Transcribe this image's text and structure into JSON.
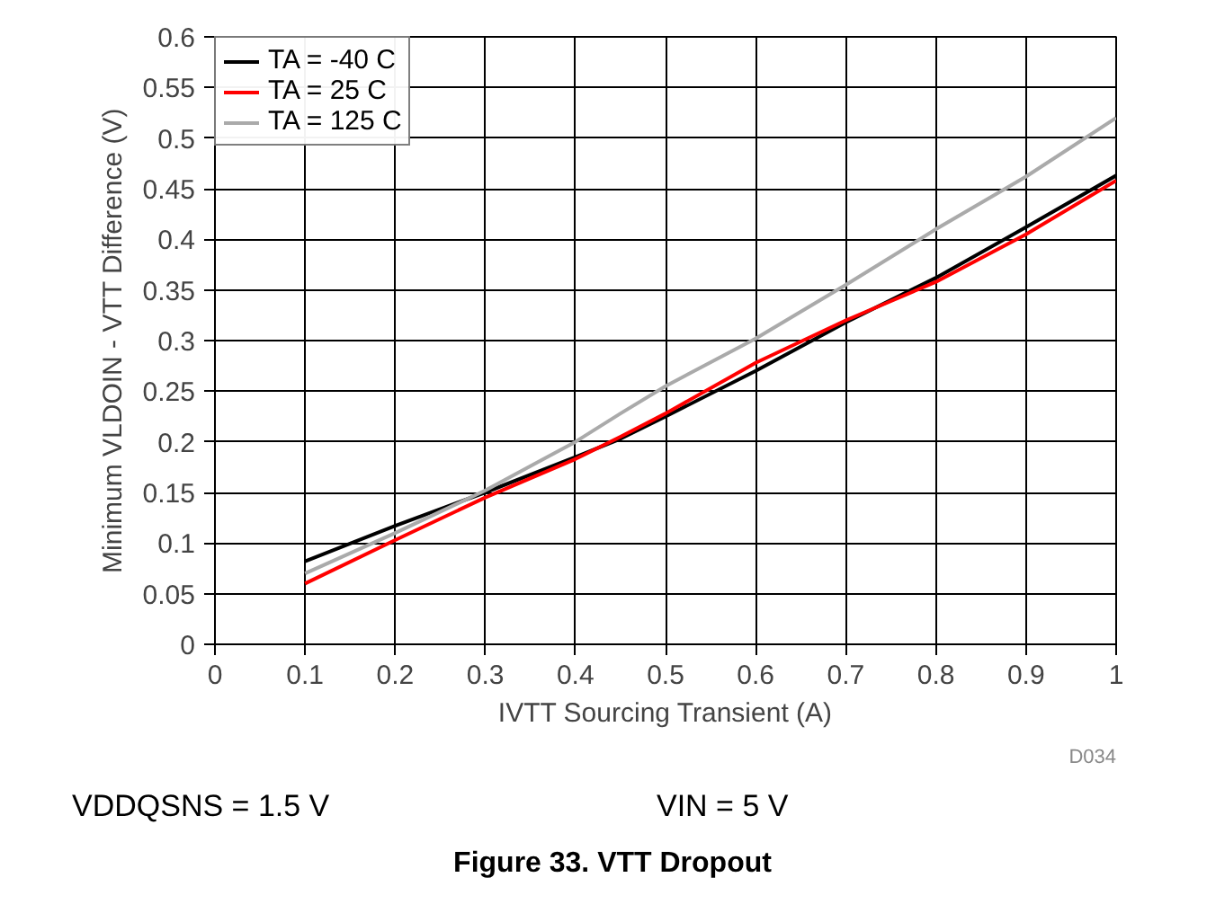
{
  "chart_data": {
    "type": "line",
    "title": "Figure 33. VTT Dropout",
    "xlabel": "IVTT Sourcing Transient (A)",
    "ylabel": "Minimum VLDOIN - VTT Difference (V)",
    "x": [
      0.1,
      0.2,
      0.3,
      0.4,
      0.45,
      0.5,
      0.6,
      0.7,
      0.8,
      0.9,
      1.0
    ],
    "series": [
      {
        "name": "TA = -40 C",
        "color": "#000000",
        "values": [
          0.082,
          0.117,
          0.15,
          0.185,
          0.203,
          0.225,
          0.27,
          0.318,
          0.362,
          0.412,
          0.463
        ]
      },
      {
        "name": "TA = 25 C",
        "color": "#ff0000",
        "values": [
          0.06,
          0.103,
          0.145,
          0.183,
          0.205,
          0.228,
          0.278,
          0.32,
          0.358,
          0.405,
          0.458
        ]
      },
      {
        "name": "TA = 125 C",
        "color": "#aaaaaa",
        "values": [
          0.07,
          0.11,
          0.152,
          0.2,
          0.228,
          0.255,
          0.302,
          0.355,
          0.41,
          0.462,
          0.52
        ]
      }
    ],
    "xlim": [
      0,
      1
    ],
    "xticks": [
      0,
      0.1,
      0.2,
      0.3,
      0.4,
      0.5,
      0.6,
      0.7,
      0.8,
      0.9,
      1
    ],
    "ylim": [
      0,
      0.6
    ],
    "yticks": [
      0,
      0.05,
      0.1,
      0.15,
      0.2,
      0.25,
      0.3,
      0.35,
      0.4,
      0.45,
      0.5,
      0.55,
      0.6
    ],
    "grid": true,
    "legend": "top left",
    "line_style": "solid",
    "marker": "none",
    "annotations": [
      "D034",
      "VDDQSNS = 1.5 V",
      "VIN = 5 V"
    ]
  }
}
